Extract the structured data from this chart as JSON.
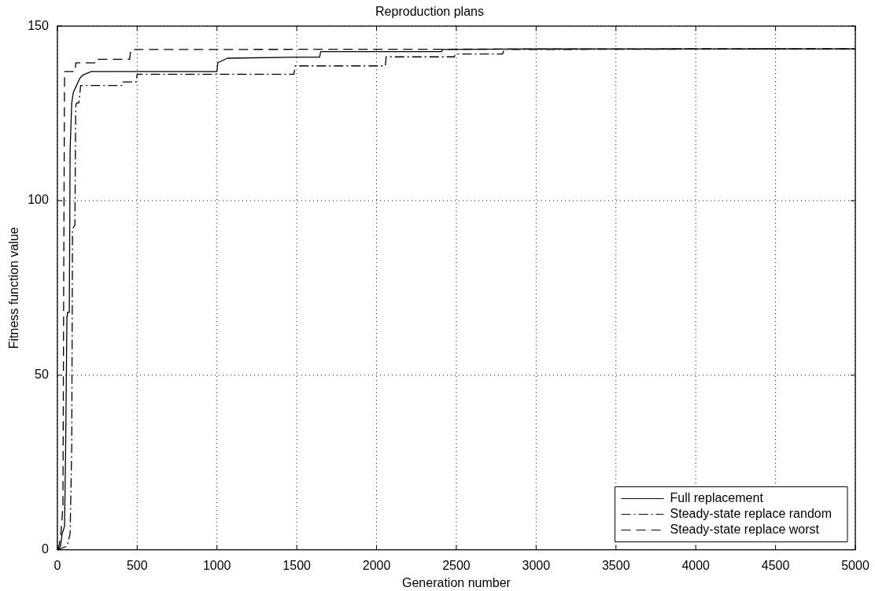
{
  "chart_data": {
    "type": "line",
    "title": "Reproduction plans",
    "xlabel": "Generation number",
    "ylabel": "Fitness function value",
    "xlim": [
      0,
      5000
    ],
    "ylim": [
      0,
      150
    ],
    "xticks": [
      0,
      500,
      1000,
      1500,
      2000,
      2500,
      3000,
      3500,
      4000,
      4500,
      5000
    ],
    "yticks": [
      0,
      50,
      100,
      150
    ],
    "grid": true,
    "legend": "bottom right",
    "marker": "none",
    "series": [
      {
        "name": "Full replacement",
        "color": "#000000",
        "line_style": "solid",
        "x": [
          0,
          20,
          30,
          45,
          52,
          60,
          63,
          75,
          80,
          90,
          100,
          120,
          140,
          160,
          213,
          1000,
          1005,
          1065,
          1492,
          1643,
          1650,
          2407,
          2415,
          3000,
          5000
        ],
        "values": [
          0,
          1,
          4.6,
          6.7,
          29,
          67,
          68,
          68,
          114.6,
          128,
          131,
          133,
          135,
          136,
          137,
          137,
          139.5,
          140.8,
          141.1,
          141.1,
          142.7,
          142.7,
          143.3,
          143.5,
          143.5
        ]
      },
      {
        "name": "Steady-state replace random",
        "color": "#000000",
        "line_style": "dashdot",
        "x": [
          0,
          60,
          80,
          90,
          95,
          110,
          115,
          120,
          135,
          146,
          404,
          410,
          493,
          500,
          1482,
          1490,
          2055,
          2060,
          2487,
          2495,
          2789,
          2800,
          5000
        ],
        "values": [
          0,
          1,
          4.6,
          29,
          92,
          93,
          127,
          128,
          128,
          133,
          133,
          134,
          134,
          136.2,
          136.2,
          138.6,
          138.6,
          141.2,
          141.2,
          142,
          142,
          143.3,
          143.5
        ]
      },
      {
        "name": "Steady-state replace worst",
        "color": "#000000",
        "line_style": "dashed",
        "x": [
          0,
          10,
          23,
          35,
          40,
          45,
          112,
          115,
          251,
          255,
          453,
          460,
          5000
        ],
        "values": [
          0,
          1,
          5,
          12.8,
          80,
          137,
          137,
          139.5,
          139.5,
          140.5,
          140.5,
          143.3,
          143.5
        ]
      }
    ]
  }
}
